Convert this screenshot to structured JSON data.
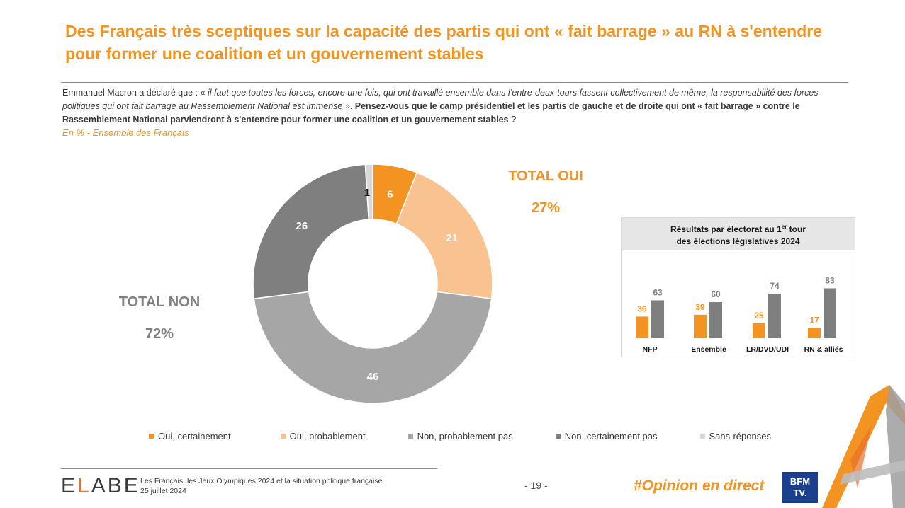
{
  "title": "Des Français très sceptiques sur la capacité des partis qui ont « fait barrage » au RN à s'entendre pour former une coalition et un gouvernement stables",
  "question": {
    "intro": "Emmanuel Macron a déclaré que : « ",
    "quote": "il faut que toutes les forces, encore une fois, qui ont travaillé ensemble dans l’entre-deux-tours fassent collectivement de même, la responsabilité des forces politiques qui ont fait barrage au Rassemblement National est immense",
    "close": " ». ",
    "bold": "Pensez-vous que le camp présidentiel et les partis de gauche et de droite qui ont « fait barrage » contre le Rassemblement National parviendront à s'entendre pour former une coalition et un gouvernement stables ?"
  },
  "subtitle": "En % - Ensemble des Français",
  "totals": {
    "oui_label": "TOTAL OUI",
    "oui_value": "27%",
    "non_label": "TOTAL NON",
    "non_value": "72%"
  },
  "chart_data": [
    {
      "type": "pie",
      "variant": "donut",
      "unit": "%",
      "categories": [
        "Oui, certainement",
        "Oui, probablement",
        "Non, probablement pas",
        "Non, certainement pas",
        "Sans-réponses"
      ],
      "values": [
        6,
        21,
        46,
        26,
        1
      ],
      "colors": [
        "#f39322",
        "#f9c391",
        "#a6a6a6",
        "#7f7f7f",
        "#d9d9d9"
      ],
      "label_colors": [
        "#ffffff",
        "#ffffff",
        "#ffffff",
        "#ffffff",
        "#1a1a1a"
      ],
      "start": "top, clockwise"
    },
    {
      "type": "bar",
      "title_line1": "Résultats par électorat au 1",
      "title_sup": "er",
      "title_line1_end": " tour",
      "title_line2": "des élections législatives 2024",
      "categories": [
        "NFP",
        "Ensemble",
        "LR/DVD/UDI",
        "RN & alliés"
      ],
      "series": [
        {
          "name": "Total oui",
          "values": [
            36,
            39,
            25,
            17
          ],
          "color": "#f39322",
          "label_color": "#f39322"
        },
        {
          "name": "Total non",
          "values": [
            63,
            60,
            74,
            83
          ],
          "color": "#7f7f7f",
          "label_color": "#7f7f7f"
        }
      ],
      "ylim": [
        0,
        100
      ]
    }
  ],
  "legend": [
    {
      "label": "Oui, certainement",
      "color": "#f39322"
    },
    {
      "label": "Oui, probablement",
      "color": "#f9c391"
    },
    {
      "label": "Non, probablement pas",
      "color": "#a6a6a6"
    },
    {
      "label": "Non, certainement pas",
      "color": "#7f7f7f"
    },
    {
      "label": "Sans-réponses",
      "color": "#d9d9d9"
    }
  ],
  "footer": {
    "logo": "ELABE",
    "line1": "Les Français, les Jeux Olympiques 2024 et la situation politique française",
    "line2": "25 juillet 2024",
    "page": "- 19 -",
    "hashtag": "#Opinion en direct",
    "partner_line1": "BFM",
    "partner_line2": "TV."
  }
}
